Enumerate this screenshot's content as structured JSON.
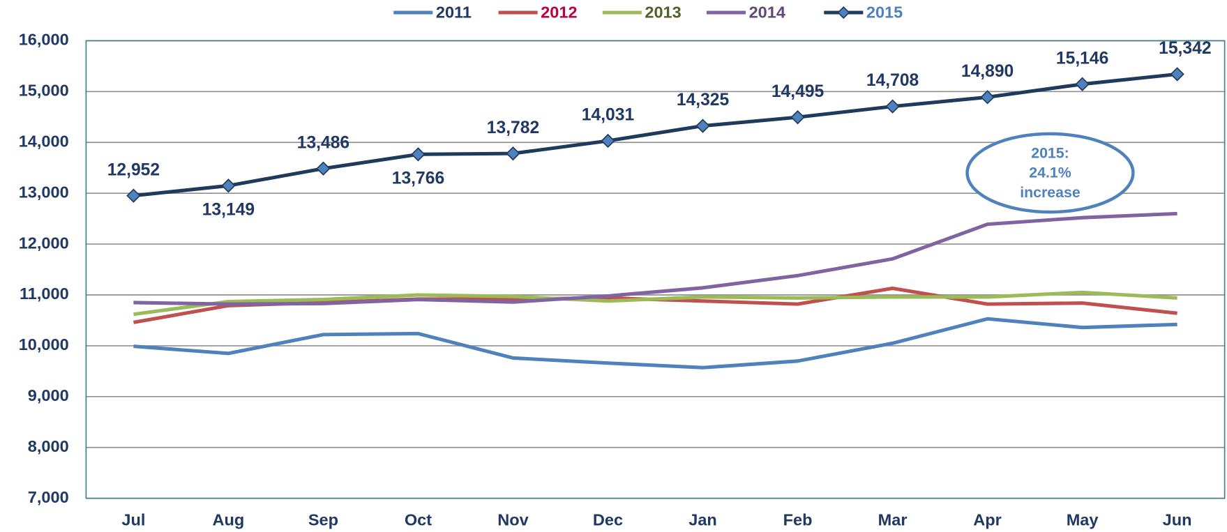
{
  "chart_data": {
    "type": "line",
    "categories": [
      "Jul",
      "Aug",
      "Sep",
      "Oct",
      "Nov",
      "Dec",
      "Jan",
      "Feb",
      "Mar",
      "Apr",
      "May",
      "Jun"
    ],
    "series": [
      {
        "name": "2011",
        "color": "#4f81bd",
        "label_color": "#1f3864",
        "values": [
          9990,
          9850,
          10220,
          10240,
          9760,
          9660,
          9570,
          9700,
          10050,
          10530,
          10360,
          10420
        ]
      },
      {
        "name": "2012",
        "color": "#c0504d",
        "label_color": "#c0003c",
        "values": [
          10460,
          10790,
          10850,
          10920,
          10920,
          10940,
          10880,
          10820,
          11130,
          10820,
          10840,
          10640
        ]
      },
      {
        "name": "2013",
        "color": "#9bbb59",
        "label_color": "#4f6228",
        "values": [
          10620,
          10870,
          10910,
          11000,
          10970,
          10880,
          10960,
          10940,
          10960,
          10960,
          11050,
          10940
        ]
      },
      {
        "name": "2014",
        "color": "#8064a2",
        "label_color": "#5f497a",
        "values": [
          10850,
          10820,
          10830,
          10910,
          10860,
          10980,
          11140,
          11380,
          11710,
          12390,
          12520,
          12600
        ]
      },
      {
        "name": "2015",
        "color": "#1f3a5a",
        "marker": "diamond",
        "marker_color": "#4f81bd",
        "label_color": "#4f81bd",
        "values": [
          12952,
          13149,
          13486,
          13766,
          13782,
          14031,
          14325,
          14495,
          14708,
          14890,
          15146,
          15342
        ],
        "value_labels": [
          "12,952",
          "13,149",
          "13,486",
          "13,766",
          "13,782",
          "14,031",
          "14,325",
          "14,495",
          "14,708",
          "14,890",
          "15,146",
          "15,342"
        ]
      }
    ],
    "ylim": [
      7000,
      16000
    ],
    "yticks": [
      {
        "value": 7000,
        "label": "7,000"
      },
      {
        "value": 8000,
        "label": "8,000"
      },
      {
        "value": 9000,
        "label": "9,000"
      },
      {
        "value": 10000,
        "label": "10,000"
      },
      {
        "value": 11000,
        "label": "11,000"
      },
      {
        "value": 12000,
        "label": "12,000"
      },
      {
        "value": 13000,
        "label": "13,000"
      },
      {
        "value": 14000,
        "label": "14,000"
      },
      {
        "value": 15000,
        "label": "15,000"
      },
      {
        "value": 16000,
        "label": "16,000"
      }
    ],
    "grid": true,
    "legend": "top",
    "annotation": {
      "lines": [
        "2015:",
        "24.1%",
        "increase"
      ]
    }
  }
}
